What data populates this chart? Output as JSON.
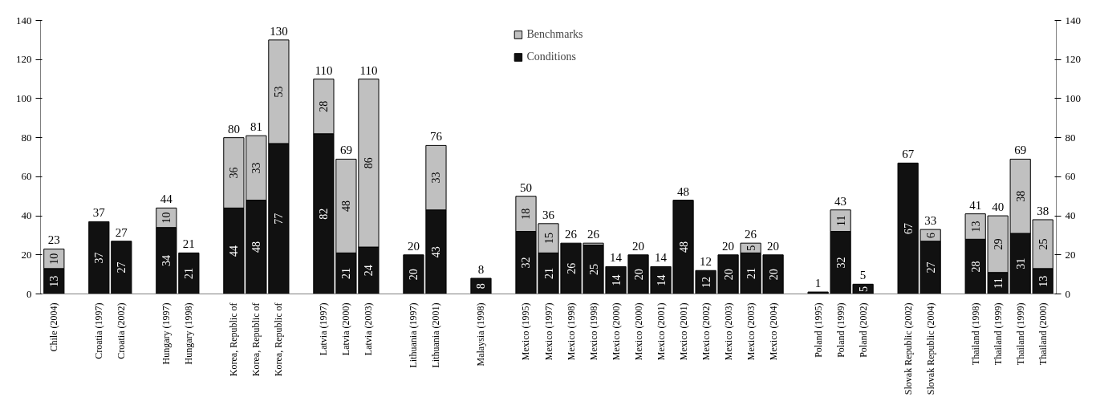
{
  "chart_data": {
    "type": "bar",
    "stacked": true,
    "categories": [
      "Chile (2004)",
      null,
      "Croatia (1997)",
      "Croatia (2002)",
      null,
      "Hungary (1997)",
      "Hungary (1998)",
      null,
      "Korea, Republic of",
      "Korea, Republic of",
      "Korea, Republic of",
      null,
      "Latvia (1997)",
      "Latvia (2000)",
      "Latvia (2003)",
      null,
      "Lithuania (1997)",
      "Lithuania (2001)",
      null,
      "Malaysia (1998)",
      null,
      "Mexico (1995)",
      "Mexico (1997)",
      "Mexico (1998)",
      "Mexico (1998)",
      "Mexico (2000)",
      "Mexico (2000)",
      "Mexico (2001)",
      "Mexico (2001)",
      "Mexico (2002)",
      "Mexico (2003)",
      "Mexico (2003)",
      "Mexico (2004)",
      null,
      "Poland (1995)",
      "Poland (1999)",
      "Poland (2002)",
      null,
      "Slovak Republic (2002)",
      "Slovak Republic (2004)",
      null,
      "Thailand (1998)",
      "Thailand (1999)",
      "Thailand (1999)",
      "Thailand (2000)"
    ],
    "series": [
      {
        "name": "Conditions",
        "color": "#111111",
        "values": [
          13,
          null,
          37,
          27,
          null,
          34,
          21,
          null,
          44,
          48,
          77,
          null,
          82,
          21,
          24,
          null,
          20,
          43,
          null,
          8,
          null,
          32,
          21,
          26,
          25,
          14,
          20,
          14,
          48,
          12,
          20,
          21,
          20,
          null,
          1,
          32,
          5,
          null,
          67,
          27,
          null,
          28,
          11,
          31,
          13
        ],
        "value_labels": [
          "13",
          null,
          "37",
          "27",
          null,
          "34",
          "21",
          null,
          "44",
          "48",
          "77",
          null,
          "82",
          "21",
          "24",
          null,
          "20",
          "43",
          null,
          "8",
          null,
          "32",
          "21",
          "26",
          "25",
          "14",
          "20",
          "14",
          "48",
          "12",
          "20",
          "21",
          "20",
          null,
          null,
          "32",
          "5",
          null,
          "67",
          "27",
          null,
          "28",
          "11",
          "31",
          "13"
        ]
      },
      {
        "name": "Benchmarks",
        "color": "#c0c0c0",
        "values": [
          10,
          null,
          0,
          0,
          null,
          10,
          0,
          null,
          36,
          33,
          53,
          null,
          28,
          48,
          86,
          null,
          0,
          33,
          null,
          0,
          null,
          18,
          15,
          0,
          1,
          0,
          0,
          0,
          0,
          0,
          0,
          5,
          0,
          null,
          0,
          11,
          0,
          null,
          0,
          6,
          null,
          13,
          29,
          38,
          25
        ],
        "value_labels": [
          "10",
          null,
          null,
          null,
          null,
          "10",
          null,
          null,
          "36",
          "33",
          "53",
          null,
          "28",
          "48",
          "86",
          null,
          null,
          "33",
          null,
          null,
          null,
          "18",
          "15",
          null,
          null,
          null,
          null,
          null,
          null,
          null,
          null,
          "5",
          null,
          null,
          null,
          "11",
          null,
          null,
          null,
          "6",
          null,
          "13",
          "29",
          "38",
          "25"
        ]
      }
    ],
    "totals": [
      "23",
      null,
      "37",
      "27",
      null,
      "44",
      "21",
      null,
      "80",
      "81",
      "130",
      null,
      "110",
      "69",
      "110",
      null,
      "20",
      "76",
      null,
      "8",
      null,
      "50",
      "36",
      "26",
      "26",
      "14",
      "20",
      "14",
      "48",
      "12",
      "20",
      "26",
      "20",
      null,
      "1",
      "43",
      "5",
      null,
      "67",
      "33",
      null,
      "41",
      "40",
      "69",
      "38"
    ],
    "ylim": [
      0,
      140
    ],
    "yticks": [
      0,
      20,
      40,
      60,
      80,
      100,
      120,
      140
    ],
    "y2lim": [
      0,
      140
    ],
    "y2ticks": [
      0,
      20,
      40,
      60,
      80,
      100,
      120,
      140
    ],
    "grid": false,
    "legend": "top"
  }
}
